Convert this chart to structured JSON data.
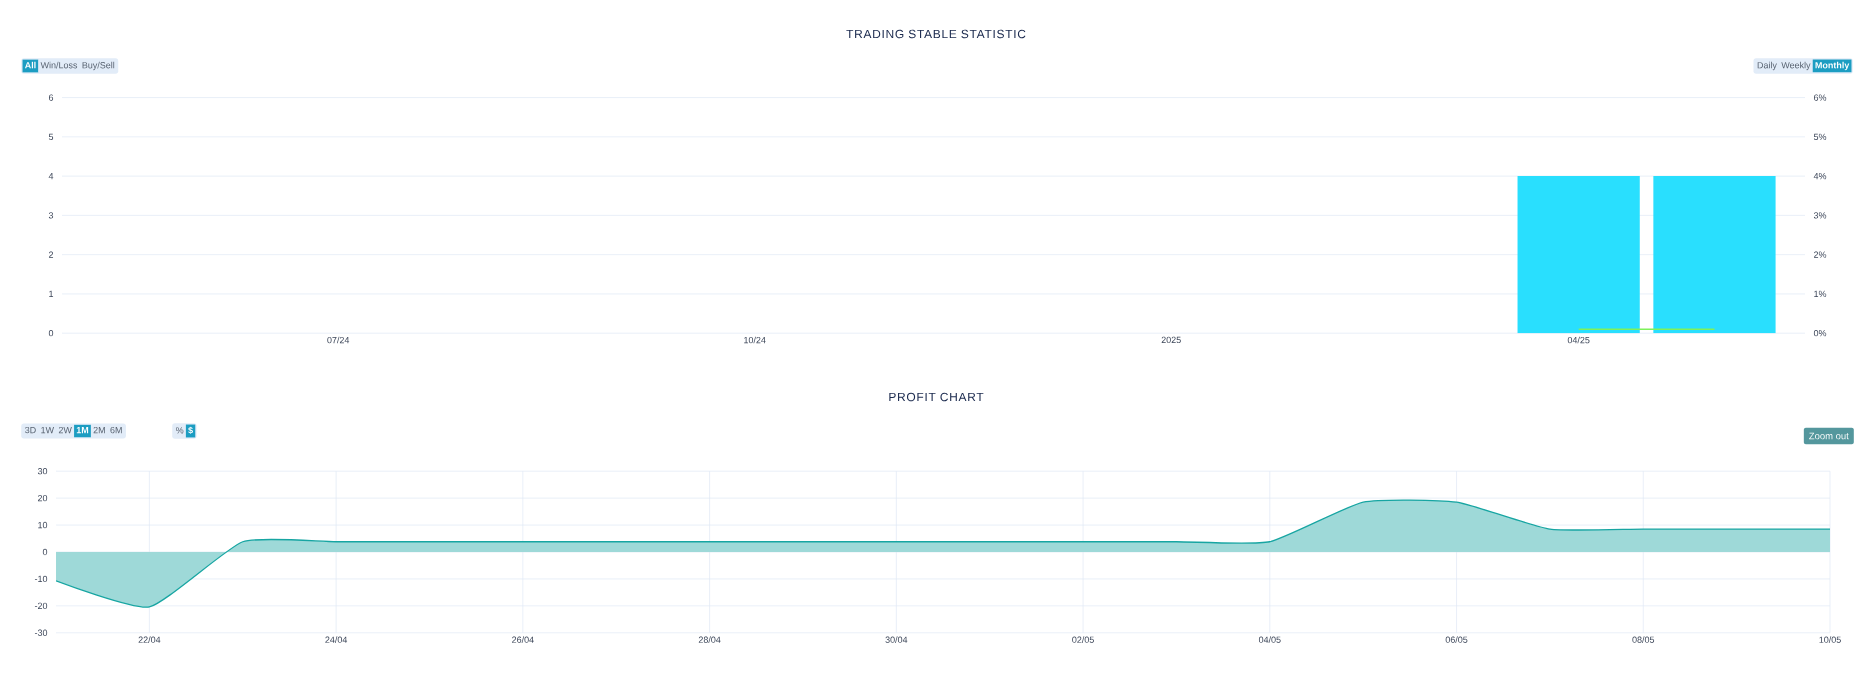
{
  "chart_data": [
    {
      "type": "bar",
      "title": "TRADING STABLE STATISTIC",
      "annotations": [
        "All",
        "Win/Loss",
        "Buy/Sell",
        "Daily",
        "Weekly",
        "Monthly"
      ],
      "x": [
        "2025-04",
        "2025-05"
      ],
      "series": [
        {
          "type": "bar",
          "color": "#29dffe",
          "values": [
            4,
            4
          ]
        },
        {
          "type": "line",
          "axis": "y2",
          "color": "#7ef25a",
          "values": [
            0.1,
            0.1
          ]
        }
      ],
      "xlim": [
        "2024-05-01",
        "2025-05-21"
      ],
      "xticks": [
        {
          "value": "2024-07",
          "label": "07/24"
        },
        {
          "value": "2024-10",
          "label": "10/24"
        },
        {
          "value": "2025",
          "label": "2025"
        },
        {
          "value": "2025-04",
          "label": "04/25"
        }
      ],
      "ylim": [
        0,
        6
      ],
      "yticks": [
        0,
        1,
        2,
        3,
        4,
        5,
        6
      ],
      "y2lim": [
        0,
        6
      ],
      "y2ticks": [
        {
          "value": 0,
          "label": "0%"
        },
        {
          "value": 1,
          "label": "1%"
        },
        {
          "value": 2,
          "label": "2%"
        },
        {
          "value": 3,
          "label": "3%"
        },
        {
          "value": 4,
          "label": "4%"
        },
        {
          "value": 5,
          "label": "5%"
        },
        {
          "value": 6,
          "label": "6%"
        }
      ],
      "grid": "y"
    },
    {
      "type": "area",
      "title": "PROFIT CHART",
      "annotations": [
        "3D",
        "1W",
        "2W",
        "1M",
        "2M",
        "6M",
        "%",
        "$",
        "Zoom out"
      ],
      "x": [
        "2025-04-21",
        "2025-04-22",
        "2025-04-23",
        "2025-04-24",
        "2025-04-25",
        "2025-04-26",
        "2025-04-27",
        "2025-04-28",
        "2025-04-29",
        "2025-04-30",
        "2025-05-01",
        "2025-05-02",
        "2025-05-03",
        "2025-05-04",
        "2025-05-05",
        "2025-05-06",
        "2025-05-07",
        "2025-05-08",
        "2025-05-09",
        "2025-05-10"
      ],
      "series": [
        {
          "color": "#17a5a2",
          "values": [
            -10.7,
            -20.4,
            3.8,
            3.8,
            3.8,
            3.8,
            3.8,
            3.8,
            3.8,
            3.8,
            3.8,
            3.8,
            3.8,
            3.8,
            18.5,
            18.5,
            8.5,
            8.5,
            8.5,
            8.5
          ]
        }
      ],
      "xlim": [
        "2025-04-21",
        "2025-05-10"
      ],
      "xticks": [
        {
          "value": "2025-04-22",
          "label": "22/04"
        },
        {
          "value": "2025-04-24",
          "label": "24/04"
        },
        {
          "value": "2025-04-26",
          "label": "26/04"
        },
        {
          "value": "2025-04-28",
          "label": "28/04"
        },
        {
          "value": "2025-04-30",
          "label": "30/04"
        },
        {
          "value": "2025-05-02",
          "label": "02/05"
        },
        {
          "value": "2025-05-04",
          "label": "04/05"
        },
        {
          "value": "2025-05-06",
          "label": "06/05"
        },
        {
          "value": "2025-05-08",
          "label": "08/05"
        },
        {
          "value": "2025-05-10",
          "label": "10/05"
        }
      ],
      "ylim": [
        -30,
        30
      ],
      "yticks": [
        -30,
        -20,
        -10,
        0,
        10,
        20,
        30
      ],
      "grid": true
    }
  ]
}
